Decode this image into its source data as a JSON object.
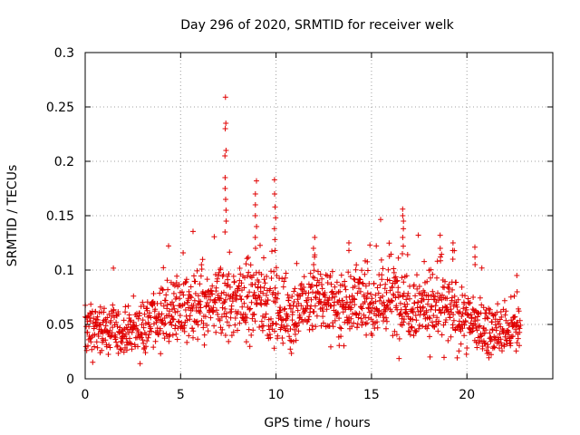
{
  "chart_data": {
    "type": "scatter",
    "title": "Day 296 of 2020, SRMTID for receiver welk",
    "xlabel": "GPS time / hours",
    "ylabel": "SRMTID / TECUs",
    "xlim": [
      0,
      24.5
    ],
    "ylim": [
      0,
      0.3
    ],
    "xticks": [
      0,
      5,
      10,
      15,
      20
    ],
    "xtick_labels": [
      "0",
      "5",
      "10",
      "15",
      "20"
    ],
    "yticks": [
      0,
      0.05,
      0.1,
      0.15,
      0.2,
      0.25,
      0.3
    ],
    "ytick_labels": [
      "0",
      "0.05",
      "0.1",
      "0.15",
      "0.2",
      "0.25",
      "0.3"
    ],
    "grid": true,
    "marker": "+",
    "color": "#e00000",
    "series": [
      {
        "name": "SRMTID",
        "x_start": 0,
        "x_end": 22.8,
        "trend_x": [
          0,
          1,
          2,
          3,
          4,
          5,
          6,
          7,
          8,
          9,
          10,
          11,
          12,
          13,
          14,
          15,
          16,
          17,
          18,
          19,
          20,
          21,
          22,
          22.8
        ],
        "trend_y": [
          0.045,
          0.045,
          0.042,
          0.048,
          0.058,
          0.065,
          0.062,
          0.068,
          0.072,
          0.075,
          0.065,
          0.058,
          0.075,
          0.068,
          0.07,
          0.068,
          0.075,
          0.07,
          0.068,
          0.062,
          0.055,
          0.045,
          0.042,
          0.045
        ],
        "spread_y": [
          0.015,
          0.015,
          0.015,
          0.015,
          0.018,
          0.02,
          0.02,
          0.025,
          0.025,
          0.025,
          0.022,
          0.02,
          0.022,
          0.02,
          0.02,
          0.02,
          0.025,
          0.022,
          0.022,
          0.022,
          0.018,
          0.015,
          0.015,
          0.015
        ],
        "spikes": [
          {
            "x": 7.35,
            "y": [
              0.259,
              0.235,
              0.23,
              0.21,
              0.205,
              0.185,
              0.175,
              0.165,
              0.155,
              0.145,
              0.135
            ]
          },
          {
            "x": 8.95,
            "y": [
              0.182,
              0.17,
              0.16,
              0.15,
              0.14,
              0.13,
              0.12
            ]
          },
          {
            "x": 9.95,
            "y": [
              0.183,
              0.17,
              0.158,
              0.148,
              0.138,
              0.128,
              0.118
            ]
          },
          {
            "x": 16.65,
            "y": [
              0.156,
              0.15,
              0.145,
              0.138,
              0.13,
              0.122,
              0.115
            ]
          },
          {
            "x": 18.6,
            "y": [
              0.132,
              0.12,
              0.112
            ]
          },
          {
            "x": 19.3,
            "y": [
              0.125,
              0.118,
              0.11
            ]
          },
          {
            "x": 20.4,
            "y": [
              0.121,
              0.112,
              0.105
            ]
          },
          {
            "x": 12.0,
            "y": [
              0.13,
              0.12,
              0.112
            ]
          },
          {
            "x": 13.8,
            "y": [
              0.125,
              0.118
            ]
          },
          {
            "x": 22.6,
            "y": [
              0.095,
              0.08
            ]
          }
        ]
      }
    ]
  }
}
